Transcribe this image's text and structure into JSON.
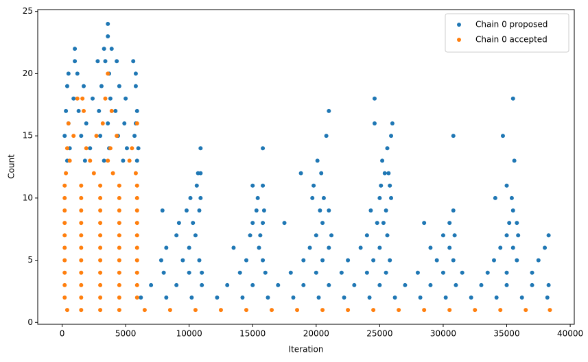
{
  "chart_data": {
    "type": "scatter",
    "xlabel": "Iteration",
    "ylabel": "Count",
    "xlim": [
      -1920,
      40320
    ],
    "ylim": [
      -0.15,
      25.15
    ],
    "xticks": [
      0,
      5000,
      10000,
      15000,
      20000,
      25000,
      30000,
      35000,
      40000
    ],
    "yticks": [
      0,
      5,
      10,
      15,
      20,
      25
    ],
    "legend": "upper right",
    "series": [
      {
        "name": "Chain 0 proposed",
        "color": "#1f77b4",
        "x": [
          6200,
          8200,
          10200,
          12200,
          14200,
          16200,
          18200,
          20200,
          22200,
          24200,
          26200,
          28200,
          30200,
          32200,
          34200,
          36200,
          38200,
          7000,
          9000,
          11000,
          13000,
          15000,
          17000,
          19000,
          21000,
          23000,
          25000,
          27000,
          29000,
          31000,
          33000,
          35000,
          37000,
          38300,
          8000,
          10000,
          11000,
          14000,
          16000,
          18000,
          20000,
          22000,
          24000,
          25500,
          28000,
          30000,
          31500,
          33500,
          35000,
          37000,
          7800,
          9500,
          10800,
          14500,
          15800,
          19000,
          20500,
          22500,
          24500,
          25800,
          29500,
          30800,
          34000,
          35800,
          37500,
          8200,
          10000,
          13500,
          15500,
          19500,
          21000,
          23500,
          25000,
          29000,
          30500,
          34500,
          35500,
          38000,
          9000,
          10500,
          14800,
          15600,
          20000,
          21200,
          24000,
          25600,
          30000,
          30900,
          35000,
          35900,
          38300,
          9200,
          10300,
          15000,
          15800,
          17500,
          20500,
          24800,
          25300,
          28500,
          30500,
          35200,
          35800,
          7900,
          9800,
          10800,
          15300,
          15900,
          20300,
          21000,
          24300,
          25500,
          30800,
          35500,
          10100,
          10900,
          15400,
          19700,
          20600,
          25000,
          25900,
          34100,
          35400,
          10600,
          15000,
          15800,
          19800,
          25100,
          25800,
          35000,
          10700,
          10900,
          18800,
          20400,
          25400,
          25700,
          20100,
          25200,
          35600,
          10900,
          15800,
          25600,
          20800,
          25900,
          30800,
          34700,
          24600,
          26000,
          21000,
          24600,
          35500,
          400,
          1800,
          3300,
          4800,
          5900,
          600,
          2200,
          3700,
          5100,
          6000,
          200,
          1500,
          3000,
          4400,
          5700,
          500,
          1900,
          3600,
          4900,
          5800,
          300,
          1300,
          2900,
          4200,
          5900,
          900,
          2400,
          3800,
          5000,
          400,
          1700,
          3100,
          4500,
          5800,
          500,
          1200,
          3700,
          5800,
          1000,
          2800,
          3400,
          4300,
          5600,
          1000,
          3300,
          3900,
          3600,
          3600
        ],
        "values": [
          2,
          2,
          2,
          2,
          2,
          2,
          2,
          2,
          2,
          2,
          2,
          2,
          2,
          2,
          2,
          2,
          2,
          3,
          3,
          3,
          3,
          3,
          3,
          3,
          3,
          3,
          3,
          3,
          3,
          3,
          3,
          3,
          3,
          3,
          4,
          4,
          4,
          4,
          4,
          4,
          4,
          4,
          4,
          4,
          4,
          4,
          4,
          4,
          4,
          4,
          5,
          5,
          5,
          5,
          5,
          5,
          5,
          5,
          5,
          5,
          5,
          5,
          5,
          5,
          5,
          6,
          6,
          6,
          6,
          6,
          6,
          6,
          6,
          6,
          6,
          6,
          6,
          6,
          7,
          7,
          7,
          7,
          7,
          7,
          7,
          7,
          7,
          7,
          7,
          7,
          7,
          8,
          8,
          8,
          8,
          8,
          8,
          8,
          8,
          8,
          8,
          8,
          8,
          9,
          9,
          9,
          9,
          9,
          9,
          9,
          9,
          9,
          9,
          9,
          10,
          10,
          10,
          10,
          10,
          10,
          10,
          10,
          10,
          11,
          11,
          11,
          11,
          11,
          11,
          11,
          12,
          12,
          12,
          12,
          12,
          12,
          13,
          13,
          13,
          14,
          14,
          14,
          15,
          15,
          15,
          15,
          16,
          16,
          17,
          18,
          18,
          13,
          13,
          13,
          13,
          13,
          14,
          14,
          14,
          14,
          14,
          15,
          15,
          15,
          15,
          15,
          16,
          16,
          16,
          16,
          16,
          17,
          17,
          17,
          17,
          17,
          18,
          18,
          18,
          18,
          19,
          19,
          19,
          19,
          19,
          20,
          20,
          20,
          20,
          21,
          21,
          21,
          21,
          21,
          22,
          22,
          22,
          23,
          24
        ]
      },
      {
        "name": "Chain 0 accepted",
        "color": "#ff7f0e",
        "x": [
          400,
          1500,
          3000,
          4500,
          6500,
          8500,
          10500,
          12500,
          14500,
          16500,
          18500,
          20500,
          22500,
          24500,
          26500,
          28500,
          30500,
          32500,
          34500,
          36500,
          38400,
          200,
          1500,
          3000,
          4500,
          5900,
          200,
          1500,
          3000,
          4500,
          5900,
          200,
          1500,
          3000,
          4500,
          5900,
          200,
          1500,
          3000,
          4500,
          5900,
          200,
          1500,
          3000,
          4500,
          5900,
          200,
          1500,
          3000,
          4500,
          5900,
          200,
          1500,
          3000,
          4500,
          5900,
          200,
          1500,
          3000,
          4500,
          5900,
          200,
          1500,
          3000,
          4500,
          5900,
          200,
          1500,
          3000,
          4500,
          5900,
          300,
          2500,
          4000,
          5800,
          600,
          2200,
          3600,
          5300,
          400,
          1900,
          3800,
          5500,
          900,
          2700,
          4300,
          500,
          3200,
          5900,
          1700,
          3900,
          1200,
          1600,
          3400,
          3600
        ],
        "values": [
          1,
          1,
          1,
          1,
          1,
          1,
          1,
          1,
          1,
          1,
          1,
          1,
          1,
          1,
          1,
          1,
          1,
          1,
          1,
          1,
          1,
          2,
          2,
          2,
          2,
          2,
          3,
          3,
          3,
          3,
          3,
          4,
          4,
          4,
          4,
          4,
          5,
          5,
          5,
          5,
          5,
          6,
          6,
          6,
          6,
          6,
          7,
          7,
          7,
          7,
          7,
          8,
          8,
          8,
          8,
          8,
          9,
          9,
          9,
          9,
          9,
          10,
          10,
          10,
          10,
          10,
          11,
          11,
          11,
          11,
          11,
          12,
          12,
          12,
          12,
          13,
          13,
          13,
          13,
          14,
          14,
          14,
          14,
          15,
          15,
          15,
          16,
          16,
          16,
          17,
          17,
          18,
          18,
          18,
          20
        ]
      }
    ]
  }
}
